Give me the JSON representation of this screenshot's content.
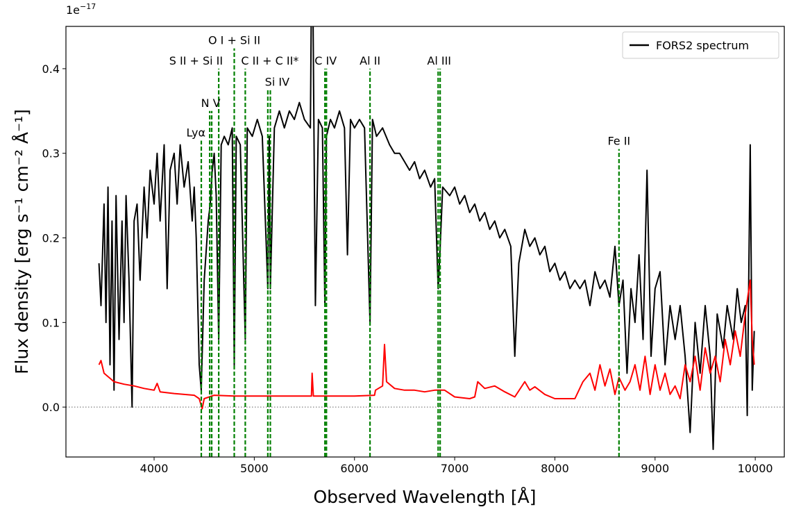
{
  "chart_data": {
    "type": "line",
    "xlabel": "Observed Wavelength [Å]",
    "ylabel": "Flux density [erg s⁻¹ cm⁻² Å⁻¹]",
    "offset_text": {
      "base": "1e",
      "exponent": "−17"
    },
    "xlim": [
      3120,
      10290
    ],
    "ylim": [
      -0.059,
      0.45
    ],
    "xticks": [
      4000,
      5000,
      6000,
      7000,
      8000,
      9000,
      10000
    ],
    "yticks": [
      {
        "value": 0,
        "label": "0.0"
      },
      0.1,
      0.2,
      0.3,
      0.4
    ],
    "hline": 0,
    "legend": "upper right",
    "series": [
      {
        "name": "FORS2 spectrum",
        "color": "#000000",
        "x": [
          3450,
          3470,
          3500,
          3520,
          3540,
          3560,
          3580,
          3600,
          3620,
          3650,
          3680,
          3700,
          3720,
          3750,
          3780,
          3800,
          3830,
          3860,
          3900,
          3930,
          3960,
          4000,
          4030,
          4060,
          4100,
          4130,
          4160,
          4200,
          4230,
          4260,
          4300,
          4340,
          4380,
          4400,
          4420,
          4450,
          4470,
          4500,
          4540,
          4560,
          4580,
          4600,
          4620,
          4645,
          4670,
          4700,
          4740,
          4780,
          4800,
          4820,
          4860,
          4910,
          4930,
          4980,
          5030,
          5080,
          5135,
          5150,
          5160,
          5200,
          5250,
          5300,
          5350,
          5400,
          5450,
          5500,
          5560,
          5577,
          5595,
          5610,
          5640,
          5680,
          5705,
          5720,
          5760,
          5800,
          5850,
          5900,
          5930,
          5960,
          6000,
          6050,
          6100,
          6155,
          6180,
          6220,
          6280,
          6350,
          6400,
          6450,
          6500,
          6550,
          6600,
          6650,
          6700,
          6760,
          6800,
          6835,
          6855,
          6880,
          6950,
          7000,
          7050,
          7100,
          7150,
          7200,
          7250,
          7300,
          7350,
          7400,
          7450,
          7500,
          7560,
          7600,
          7640,
          7700,
          7750,
          7800,
          7850,
          7900,
          7950,
          8000,
          8050,
          8100,
          8150,
          8200,
          8250,
          8300,
          8350,
          8400,
          8450,
          8500,
          8550,
          8600,
          8640,
          8680,
          8720,
          8760,
          8800,
          8840,
          8880,
          8920,
          8960,
          9000,
          9050,
          9100,
          9150,
          9200,
          9250,
          9300,
          9350,
          9400,
          9450,
          9500,
          9550,
          9580,
          9620,
          9680,
          9720,
          9780,
          9820,
          9860,
          9900,
          9920,
          9950,
          9970,
          9990
        ],
        "values": [
          0.17,
          0.12,
          0.24,
          0.1,
          0.26,
          0.05,
          0.22,
          0.02,
          0.25,
          0.08,
          0.22,
          0.1,
          0.25,
          0.15,
          0.0,
          0.22,
          0.24,
          0.15,
          0.26,
          0.2,
          0.28,
          0.24,
          0.3,
          0.22,
          0.31,
          0.14,
          0.28,
          0.3,
          0.24,
          0.31,
          0.26,
          0.29,
          0.22,
          0.26,
          0.2,
          0.05,
          0.02,
          0.15,
          0.22,
          0.24,
          0.28,
          0.3,
          0.25,
          0.08,
          0.31,
          0.32,
          0.31,
          0.33,
          0.05,
          0.32,
          0.31,
          0.08,
          0.33,
          0.32,
          0.34,
          0.32,
          0.14,
          0.32,
          0.14,
          0.33,
          0.35,
          0.33,
          0.35,
          0.34,
          0.36,
          0.34,
          0.33,
          0.6,
          0.33,
          0.12,
          0.34,
          0.33,
          0.12,
          0.32,
          0.34,
          0.33,
          0.35,
          0.33,
          0.18,
          0.34,
          0.33,
          0.34,
          0.33,
          0.1,
          0.34,
          0.32,
          0.33,
          0.31,
          0.3,
          0.3,
          0.29,
          0.28,
          0.29,
          0.27,
          0.28,
          0.26,
          0.27,
          0.14,
          0.19,
          0.26,
          0.25,
          0.26,
          0.24,
          0.25,
          0.23,
          0.24,
          0.22,
          0.23,
          0.21,
          0.22,
          0.2,
          0.21,
          0.19,
          0.06,
          0.17,
          0.21,
          0.19,
          0.2,
          0.18,
          0.19,
          0.16,
          0.17,
          0.15,
          0.16,
          0.14,
          0.15,
          0.14,
          0.15,
          0.12,
          0.16,
          0.14,
          0.15,
          0.13,
          0.19,
          0.12,
          0.15,
          0.04,
          0.14,
          0.1,
          0.18,
          0.08,
          0.28,
          0.06,
          0.14,
          0.16,
          0.05,
          0.12,
          0.08,
          0.12,
          0.06,
          -0.03,
          0.1,
          0.04,
          0.12,
          0.06,
          -0.05,
          0.11,
          0.07,
          0.12,
          0.08,
          0.14,
          0.1,
          0.12,
          -0.01,
          0.31,
          0.02,
          0.09
        ]
      },
      {
        "color": "#ff0000",
        "x": [
          3450,
          3470,
          3500,
          3550,
          3600,
          3700,
          3800,
          3900,
          4000,
          4030,
          4060,
          4200,
          4400,
          4450,
          4480,
          4500,
          4600,
          4800,
          5000,
          5200,
          5500,
          5570,
          5577,
          5590,
          6000,
          6200,
          6210,
          6280,
          6300,
          6320,
          6400,
          6500,
          6600,
          6700,
          6800,
          6900,
          7000,
          7150,
          7200,
          7230,
          7300,
          7400,
          7500,
          7600,
          7700,
          7750,
          7800,
          7900,
          8000,
          8100,
          8200,
          8280,
          8350,
          8400,
          8450,
          8500,
          8550,
          8600,
          8640,
          8700,
          8750,
          8800,
          8850,
          8900,
          8950,
          9000,
          9050,
          9100,
          9150,
          9200,
          9250,
          9300,
          9350,
          9400,
          9450,
          9500,
          9550,
          9600,
          9650,
          9700,
          9750,
          9800,
          9850,
          9900,
          9950,
          9970,
          9990
        ],
        "values": [
          0.05,
          0.055,
          0.04,
          0.035,
          0.03,
          0.027,
          0.025,
          0.022,
          0.02,
          0.028,
          0.018,
          0.016,
          0.014,
          0.01,
          -0.002,
          0.01,
          0.014,
          0.013,
          0.013,
          0.013,
          0.013,
          0.013,
          0.04,
          0.013,
          0.013,
          0.014,
          0.02,
          0.025,
          0.074,
          0.03,
          0.022,
          0.02,
          0.02,
          0.018,
          0.02,
          0.02,
          0.012,
          0.01,
          0.012,
          0.03,
          0.022,
          0.025,
          0.018,
          0.012,
          0.03,
          0.02,
          0.024,
          0.015,
          0.01,
          0.01,
          0.01,
          0.03,
          0.04,
          0.02,
          0.05,
          0.025,
          0.045,
          0.015,
          0.035,
          0.02,
          0.03,
          0.05,
          0.02,
          0.06,
          0.015,
          0.05,
          0.02,
          0.04,
          0.015,
          0.025,
          0.01,
          0.05,
          0.03,
          0.06,
          0.02,
          0.07,
          0.04,
          0.06,
          0.03,
          0.08,
          0.05,
          0.09,
          0.06,
          0.11,
          0.15,
          0.08,
          0.05
        ]
      }
    ],
    "line_color": "#008000",
    "lines": [
      {
        "label": "Lyα",
        "x": [
          4471
        ],
        "top": 0.315,
        "align": "end"
      },
      {
        "label": "N V",
        "x": [
          4555,
          4575
        ],
        "top": 0.35,
        "align": "middle"
      },
      {
        "label": "S II + Si II",
        "x": [
          4645
        ],
        "top": 0.4,
        "align": "end"
      },
      {
        "label": "O I + Si II",
        "x": [
          4800
        ],
        "top": 0.424,
        "align": "middle"
      },
      {
        "label": "C II + C II*",
        "x": [
          4910
        ],
        "top": 0.4,
        "align": "start"
      },
      {
        "label": "Si IV",
        "x": [
          5135,
          5160
        ],
        "top": 0.375,
        "align": "start"
      },
      {
        "label": "C IV",
        "x": [
          5705,
          5720
        ],
        "top": 0.4,
        "align": "middle"
      },
      {
        "label": "Al II",
        "x": [
          6155
        ],
        "top": 0.4,
        "align": "middle"
      },
      {
        "label": "Al III",
        "x": [
          6835,
          6855
        ],
        "top": 0.4,
        "align": "middle"
      },
      {
        "label": "Fe II",
        "x": [
          8640
        ],
        "top": 0.305,
        "align": "middle"
      }
    ]
  }
}
